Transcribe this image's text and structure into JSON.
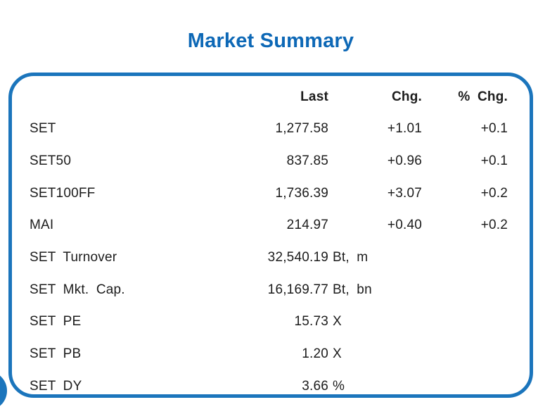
{
  "page": {
    "title": "Market Summary"
  },
  "colors": {
    "accent_blue": "#1b75bc",
    "title_blue": "#0d68b6",
    "text": "#1c1c1c"
  },
  "table": {
    "headers": {
      "last": "Last",
      "chg": "Chg.",
      "pct_chg": "% Chg."
    },
    "rows": [
      {
        "label": "SET",
        "last": "1,277.58",
        "unit": "",
        "chg": "+1.01",
        "pct_chg": "+0.1"
      },
      {
        "label": "SET50",
        "last": "837.85",
        "unit": "",
        "chg": "+0.96",
        "pct_chg": "+0.1"
      },
      {
        "label": "SET100FF",
        "last": "1,736.39",
        "unit": "",
        "chg": "+3.07",
        "pct_chg": "+0.2"
      },
      {
        "label": "MAI",
        "last": "214.97",
        "unit": "",
        "chg": "+0.40",
        "pct_chg": "+0.2"
      },
      {
        "label": "SET Turnover",
        "last": "32,540.19",
        "unit": "Bt, m",
        "chg": "",
        "pct_chg": ""
      },
      {
        "label": "SET Mkt. Cap.",
        "last": "16,169.77",
        "unit": "Bt, bn",
        "chg": "",
        "pct_chg": ""
      },
      {
        "label": "SET PE",
        "last": "15.73",
        "unit": "X",
        "chg": "",
        "pct_chg": ""
      },
      {
        "label": "SET PB",
        "last": "1.20",
        "unit": "X",
        "chg": "",
        "pct_chg": ""
      },
      {
        "label": "SET DY",
        "last": "3.66",
        "unit": "%",
        "chg": "",
        "pct_chg": ""
      }
    ]
  }
}
